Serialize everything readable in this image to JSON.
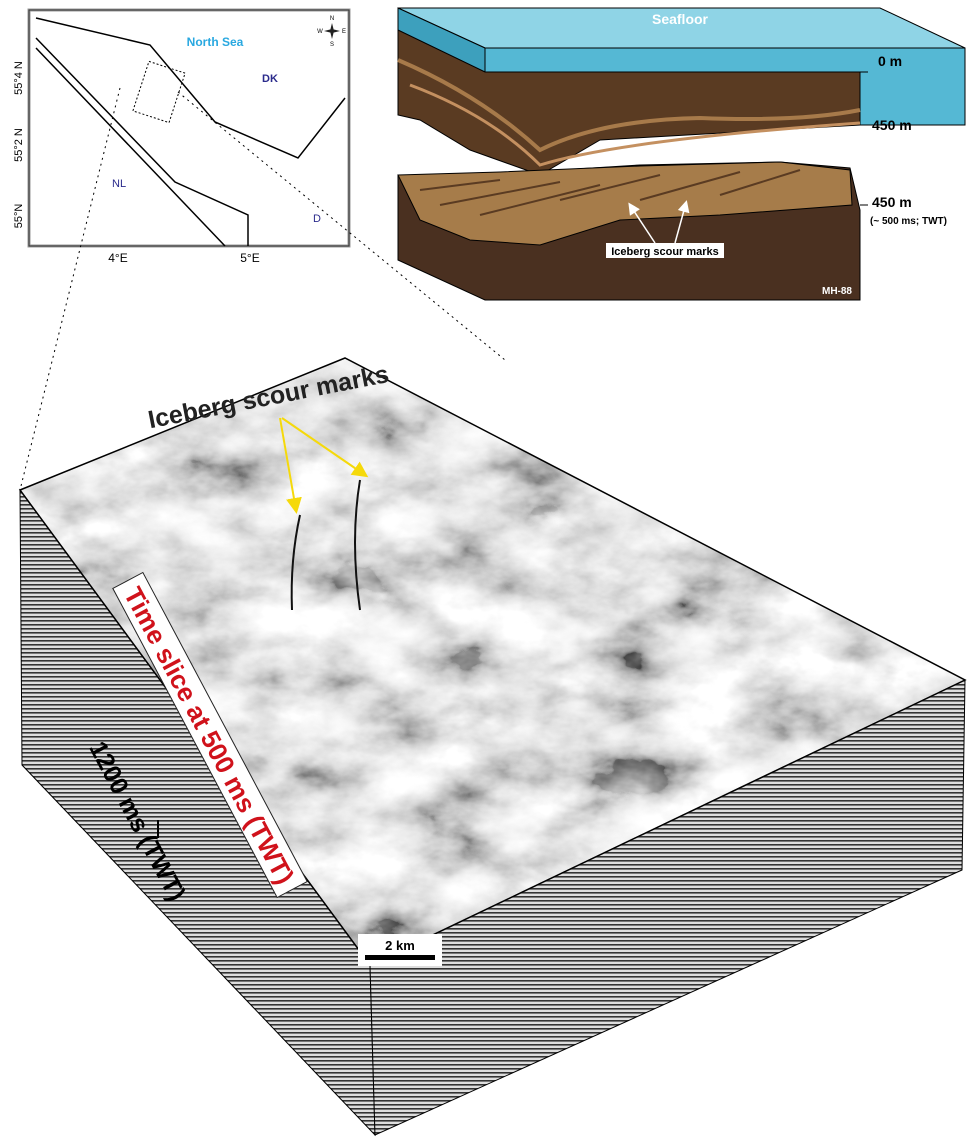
{
  "map": {
    "sea": "North Sea",
    "countries": [
      "DK",
      "NL",
      "D"
    ],
    "lat_labels": [
      "55°4 N",
      "55°2 N",
      "55°N"
    ],
    "lon_labels": [
      "4°E",
      "5°E"
    ],
    "compass": [
      "N",
      "E",
      "S",
      "W"
    ]
  },
  "block_diagram": {
    "surface": "Seafloor",
    "depths": [
      "0 m",
      "450 m",
      "450 m"
    ],
    "twt_note": "(~ 500 ms; TWT)",
    "annotation": "Iceberg scour marks",
    "source": "MH-88"
  },
  "seismic_cube": {
    "annotation": "Iceberg scour marks",
    "time_slice": "Time slice at 500 ms (TWT)",
    "depth": "1200 ms (TWT)",
    "scale_bar": "2 km"
  }
}
